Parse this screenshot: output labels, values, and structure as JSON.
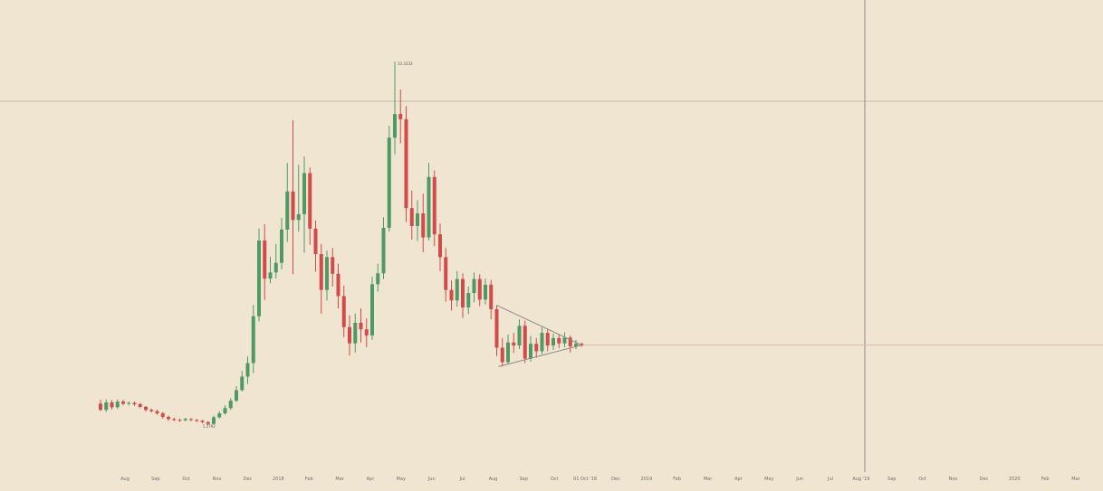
{
  "colors": {
    "background": "#efe5d1",
    "up": "#4f9a64",
    "down": "#d24a4a",
    "crosshair": "#c6b7a8",
    "crosshair_v": "#8d8b87",
    "triangle": "#8a8a8a",
    "axis_text": "#6f6f6f"
  },
  "chart_data": {
    "type": "candlestick",
    "title": "",
    "xlabel": "",
    "ylabel": "",
    "ylim": [
      0,
      100
    ],
    "x_tick_labels": [
      "Aug",
      "Sep",
      "Oct",
      "Nov",
      "Dec",
      "2018",
      "Feb",
      "Mar",
      "Apr",
      "May",
      "Jun",
      "Jul",
      "Aug",
      "Sep",
      "Oct",
      "01 Oct '18",
      "Dec",
      "2019",
      "Feb",
      "Mar",
      "Apr",
      "May",
      "Jun",
      "Jul",
      "Aug '19",
      "Sep",
      "Oct",
      "Nov",
      "Dec",
      "2020",
      "Feb",
      "Mar"
    ],
    "annotations": {
      "high_label": "33.3333",
      "low_label": "1.2792",
      "current_level": 29.0
    },
    "candles": [
      [
        15.6,
        14.2,
        16.5,
        13.9
      ],
      [
        14.2,
        15.9,
        16.6,
        13.7
      ],
      [
        15.9,
        14.8,
        16.4,
        14.3
      ],
      [
        14.8,
        16.1,
        16.6,
        14.4
      ],
      [
        16.1,
        15.6,
        16.5,
        15.2
      ],
      [
        15.6,
        15.8,
        16.1,
        15.2
      ],
      [
        15.8,
        15.5,
        16.1,
        15.1
      ],
      [
        15.5,
        14.9,
        15.8,
        14.6
      ],
      [
        14.9,
        14.2,
        15.1,
        13.8
      ],
      [
        14.2,
        13.9,
        14.5,
        13.6
      ],
      [
        13.9,
        13.4,
        14.2,
        13.1
      ],
      [
        13.4,
        12.6,
        13.7,
        12.2
      ],
      [
        12.6,
        12.1,
        12.9,
        11.7
      ],
      [
        12.1,
        11.9,
        12.4,
        11.6
      ],
      [
        11.9,
        11.8,
        12.2,
        11.5
      ],
      [
        11.8,
        12.1,
        12.4,
        11.6
      ],
      [
        12.1,
        11.9,
        12.3,
        11.6
      ],
      [
        11.9,
        11.7,
        12.1,
        11.4
      ],
      [
        11.7,
        11.4,
        11.9,
        11.1
      ],
      [
        11.4,
        11.0,
        11.6,
        10.7
      ],
      [
        11.0,
        12.5,
        12.9,
        10.8
      ],
      [
        12.5,
        13.4,
        13.9,
        12.2
      ],
      [
        13.4,
        14.6,
        15.2,
        13.1
      ],
      [
        14.6,
        16.3,
        16.9,
        14.2
      ],
      [
        16.3,
        18.7,
        19.6,
        16.0
      ],
      [
        18.7,
        21.8,
        23.1,
        18.4
      ],
      [
        21.8,
        24.9,
        26.4,
        20.1
      ],
      [
        24.9,
        35.6,
        38.2,
        22.6
      ],
      [
        35.6,
        52.9,
        55.6,
        34.4
      ],
      [
        52.9,
        44.2,
        56.6,
        39.3
      ],
      [
        44.2,
        45.6,
        49.2,
        43.1
      ],
      [
        45.6,
        47.8,
        52.1,
        44.2
      ],
      [
        47.8,
        55.4,
        58.1,
        46.3
      ],
      [
        55.4,
        64.1,
        70.6,
        52.6
      ],
      [
        64.1,
        57.6,
        80.4,
        45.2
      ],
      [
        57.6,
        58.9,
        70.2,
        54.9
      ],
      [
        58.9,
        68.3,
        72.1,
        50.1
      ],
      [
        68.3,
        55.6,
        69.6,
        51.9
      ],
      [
        55.6,
        49.8,
        57.5,
        45.8
      ],
      [
        49.8,
        41.6,
        52.1,
        36.2
      ],
      [
        41.6,
        49.1,
        50.6,
        39.2
      ],
      [
        49.1,
        45.3,
        51.2,
        42.4
      ],
      [
        45.3,
        40.2,
        47.6,
        37.4
      ],
      [
        40.2,
        33.1,
        42.6,
        30.8
      ],
      [
        33.1,
        29.4,
        35.8,
        26.6
      ],
      [
        29.4,
        34.1,
        36.2,
        27.3
      ],
      [
        34.1,
        32.6,
        37.4,
        29.6
      ],
      [
        32.6,
        31.2,
        35.1,
        28.5
      ],
      [
        31.2,
        42.9,
        44.6,
        30.2
      ],
      [
        42.9,
        45.4,
        47.6,
        41.2
      ],
      [
        45.4,
        55.8,
        58.2,
        44.1
      ],
      [
        55.8,
        76.4,
        79.1,
        54.9
      ],
      [
        76.4,
        81.8,
        93.8,
        72.6
      ],
      [
        81.8,
        80.6,
        87.4,
        75.1
      ],
      [
        80.6,
        60.3,
        83.6,
        57.1
      ],
      [
        60.3,
        56.2,
        64.3,
        53.1
      ],
      [
        56.2,
        59.1,
        62.1,
        52.8
      ],
      [
        59.1,
        53.6,
        63.6,
        50.2
      ],
      [
        53.6,
        67.4,
        70.6,
        52.9
      ],
      [
        67.4,
        54.3,
        68.9,
        51.6
      ],
      [
        54.3,
        49.1,
        56.8,
        45.9
      ],
      [
        49.1,
        41.6,
        51.2,
        38.9
      ],
      [
        41.6,
        39.2,
        43.8,
        36.9
      ],
      [
        39.2,
        44.1,
        45.9,
        37.8
      ],
      [
        44.1,
        37.6,
        45.4,
        35.2
      ],
      [
        37.6,
        40.9,
        42.4,
        36.1
      ],
      [
        40.9,
        44.1,
        45.6,
        38.8
      ],
      [
        44.1,
        39.4,
        45.2,
        37.9
      ],
      [
        39.4,
        42.8,
        44.2,
        38.3
      ],
      [
        42.8,
        37.2,
        43.9,
        34.9
      ],
      [
        37.2,
        28.4,
        38.1,
        26.5
      ],
      [
        28.4,
        25.1,
        30.6,
        24.1
      ],
      [
        25.1,
        29.6,
        31.4,
        24.6
      ],
      [
        29.6,
        28.9,
        31.8,
        27.2
      ],
      [
        28.9,
        33.4,
        34.9,
        28.1
      ],
      [
        33.4,
        25.9,
        34.6,
        24.9
      ],
      [
        25.9,
        29.3,
        31.1,
        25.2
      ],
      [
        29.3,
        27.6,
        30.6,
        26.1
      ],
      [
        27.6,
        31.8,
        33.1,
        26.9
      ],
      [
        31.8,
        28.9,
        32.6,
        27.6
      ],
      [
        28.9,
        30.6,
        31.6,
        27.9
      ],
      [
        30.6,
        29.4,
        31.4,
        28.3
      ],
      [
        29.4,
        30.7,
        31.9,
        28.5
      ],
      [
        30.7,
        28.7,
        31.2,
        27.3
      ],
      [
        28.7,
        29.3,
        30.2,
        28.1
      ],
      [
        29.3,
        29.0,
        29.6,
        28.6
      ]
    ]
  }
}
